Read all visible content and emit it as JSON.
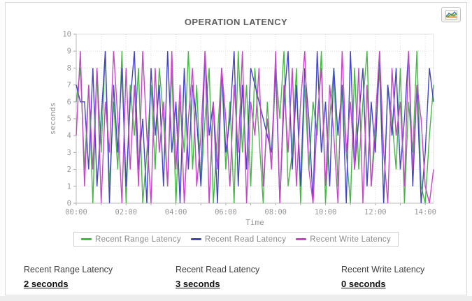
{
  "header": {
    "title": "OPERATION LATENCY",
    "chart_button_icon": "area-chart-icon"
  },
  "chart_data": {
    "type": "line",
    "title": "OPERATION LATENCY",
    "xlabel": "Time",
    "ylabel": "seconds",
    "ylim": [
      0,
      10
    ],
    "y_ticks": [
      0,
      1,
      2,
      3,
      4,
      5,
      6,
      7,
      8,
      9,
      10
    ],
    "x_span_hours": 14.3333,
    "interval_minutes": 10,
    "x_tick_hours": [
      0,
      1,
      2,
      3,
      4,
      5,
      6,
      7,
      8,
      9,
      10,
      11,
      12,
      13,
      14
    ],
    "x_label_hours": [
      0,
      2,
      4,
      6,
      8,
      10,
      12,
      14
    ],
    "x_tick_labels": [
      "00:00",
      "02:00",
      "04:00",
      "06:00",
      "08:00",
      "10:00",
      "12:00",
      "14:00"
    ],
    "grid": true,
    "legend_position": "bottom",
    "colors": {
      "grid": "#dddddd",
      "axis": "#bbbbbb",
      "tick_text": "#999999",
      "border": "#e2e2e2"
    },
    "series": [
      {
        "name": "Recent Range Latency",
        "color": "#44b944",
        "values": [
          6,
          8,
          2,
          7,
          0,
          8,
          3,
          9,
          1,
          6,
          2,
          9,
          0,
          7,
          4,
          8,
          0,
          3,
          7,
          2,
          8,
          5,
          1,
          8,
          0,
          6,
          3,
          9,
          2,
          7,
          1,
          5,
          8,
          0,
          4,
          8,
          2,
          6,
          0,
          9,
          3,
          7,
          1,
          8,
          4,
          0,
          6,
          2,
          8,
          5,
          9,
          1,
          3,
          8,
          0,
          7,
          2,
          6,
          4,
          9,
          0,
          5,
          8,
          1,
          7,
          3,
          0,
          8,
          2,
          6,
          9,
          1,
          4,
          8,
          0,
          7,
          5,
          2,
          8,
          0,
          6,
          3,
          9,
          1,
          0,
          4,
          7
        ]
      },
      {
        "name": "Recent Read Latency",
        "color": "#4444c8",
        "values": [
          7,
          6,
          6,
          2,
          8,
          1,
          5,
          9,
          0,
          7,
          3,
          8,
          1,
          6,
          9,
          2,
          5,
          0,
          8,
          4,
          7,
          1,
          9,
          3,
          6,
          0,
          8,
          2,
          7,
          5,
          1,
          9,
          4,
          6,
          0,
          8,
          3,
          5,
          9,
          1,
          7,
          2,
          8,
          7,
          6,
          5,
          4,
          3,
          8,
          0,
          6,
          9,
          2,
          7,
          1,
          8,
          5,
          0,
          9,
          3,
          6,
          1,
          8,
          4,
          7,
          0,
          9,
          2,
          5,
          8,
          1,
          6,
          3,
          9,
          0,
          7,
          4,
          8,
          2,
          5,
          9,
          1,
          7,
          0,
          3,
          8,
          6
        ]
      },
      {
        "name": "Recent Write Latency",
        "color": "#c844c8",
        "values": [
          4,
          9,
          1,
          7,
          2,
          8,
          0,
          6,
          3,
          9,
          5,
          0,
          8,
          2,
          7,
          1,
          9,
          4,
          0,
          8,
          3,
          6,
          1,
          9,
          2,
          7,
          0,
          5,
          8,
          1,
          4,
          9,
          0,
          6,
          2,
          8,
          5,
          1,
          7,
          3,
          9,
          0,
          6,
          4,
          8,
          1,
          5,
          2,
          9,
          0,
          7,
          3,
          8,
          1,
          6,
          9,
          2,
          0,
          5,
          8,
          1,
          7,
          4,
          0,
          9,
          3,
          6,
          2,
          8,
          0,
          7,
          1,
          5,
          9,
          3,
          0,
          8,
          4,
          6,
          1,
          9,
          2,
          7,
          5,
          1,
          0,
          2
        ]
      }
    ]
  },
  "stats": [
    {
      "label": "Recent Range Latency",
      "value": "2 seconds"
    },
    {
      "label": "Recent Read Latency",
      "value": "3 seconds"
    },
    {
      "label": "Recent Write Latency",
      "value": "0 seconds"
    }
  ]
}
